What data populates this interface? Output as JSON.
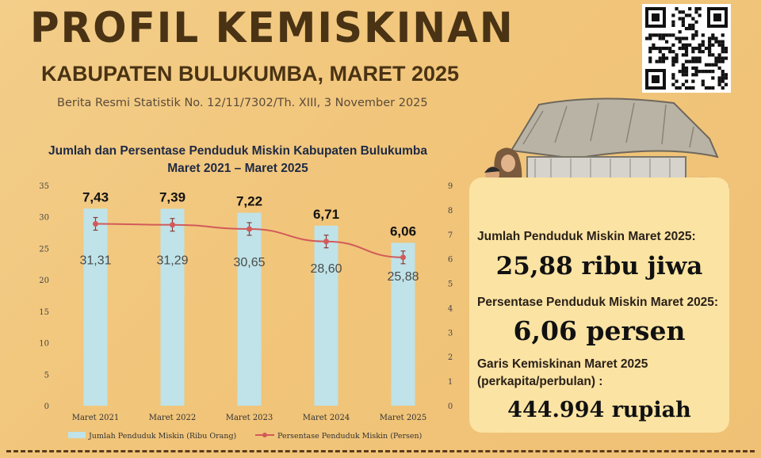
{
  "header": {
    "title": "PROFIL KEMISKINAN",
    "subtitle": "KABUPATEN BULUKUMBA, MARET 2025",
    "release": "Berita Resmi Statistik No. 12/11/7302/Th. XIII, 3 November 2025"
  },
  "summary": {
    "count_label": "Jumlah Penduduk Miskin Maret 2025:",
    "count_value": "25,88 ribu jiwa",
    "percent_label": "Persentase Penduduk Miskin Maret 2025:",
    "percent_value": "6,06 persen",
    "line_label_1": "Garis Kemiskinan Maret 2025",
    "line_label_2": "(perkapita/perbulan) :",
    "line_value": "444.994 rupiah"
  },
  "colors": {
    "background": "#f1c57a",
    "title": "#4a3314",
    "bar": "#bfe3e8",
    "line": "#d25a5a",
    "card": "#fbe3a3"
  },
  "icons": [
    "qr-code-icon",
    "house-illustration-icon",
    "family-illustration-icon"
  ],
  "chart_data": {
    "type": "bar",
    "title": "Jumlah dan Persentase Penduduk Miskin Kabupaten Bulukumba",
    "subtitle": "Maret 2021 – Maret 2025",
    "categories": [
      "Maret 2021",
      "Maret 2022",
      "Maret 2023",
      "Maret 2024",
      "Maret 2025"
    ],
    "series": [
      {
        "name": "Jumlah Penduduk Miskin (Ribu Orang)",
        "type": "bar",
        "axis": "left",
        "values": [
          31.31,
          31.29,
          30.65,
          28.6,
          25.88
        ],
        "labels": [
          "31,31",
          "31,29",
          "30,65",
          "28,60",
          "25,88"
        ]
      },
      {
        "name": "Persentase Penduduk Miskin (Persen)",
        "type": "line",
        "axis": "right",
        "values": [
          7.43,
          7.39,
          7.22,
          6.71,
          6.06
        ],
        "labels": [
          "7,43",
          "7,39",
          "7,22",
          "6,71",
          "6,06"
        ]
      }
    ],
    "ylim": [
      0,
      35
    ],
    "yticks": [
      0,
      5,
      10,
      15,
      20,
      25,
      30,
      35
    ],
    "y2lim": [
      0,
      9
    ],
    "y2ticks": [
      0,
      1,
      2,
      3,
      4,
      5,
      6,
      7,
      8,
      9
    ],
    "grid": false,
    "legend": "bottom"
  }
}
